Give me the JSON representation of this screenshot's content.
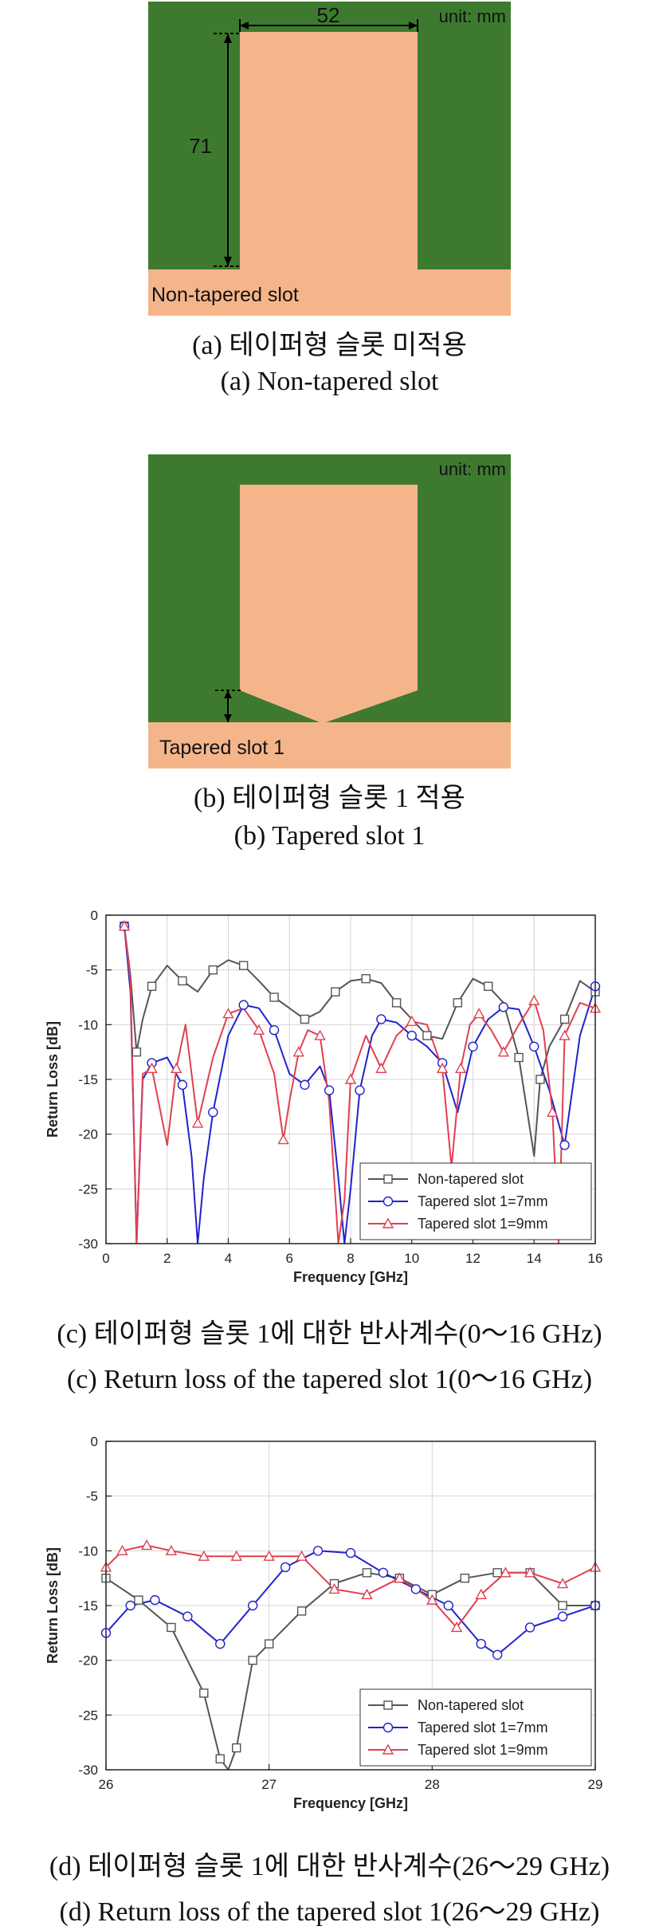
{
  "figures": {
    "a": {
      "unit": "unit: mm",
      "dim_width": "52",
      "dim_height": "71",
      "slot_label": "Non-tapered slot",
      "caption_ko": "(a) 테이퍼형 슬롯 미적용",
      "caption_en": "(a) Non-tapered slot"
    },
    "b": {
      "unit": "unit: mm",
      "slot_label": "Tapered slot 1",
      "caption_ko": "(b) 테이퍼형 슬롯 1 적용",
      "caption_en": "(b) Tapered slot 1"
    },
    "c": {
      "caption_ko": "(c) 테이퍼형 슬롯 1에 대한 반사계수(0～16 GHz)",
      "caption_en": "(c) Return loss of the tapered slot 1(0～16 GHz)"
    },
    "d": {
      "caption_ko": "(d) 테이퍼형 슬롯 1에 대한 반사계수(26～29 GHz)",
      "caption_en": "(d) Return loss of the tapered slot 1(26～29 GHz)"
    }
  },
  "colors": {
    "ground": "#3d7a2f",
    "patch": "#f5b58a",
    "series": [
      "#555555",
      "#2222cc",
      "#e04050"
    ]
  },
  "chart_data": [
    {
      "type": "line",
      "xlabel": "Frequency [GHz]",
      "ylabel": "Return Loss [dB]",
      "xlim": [
        0,
        16
      ],
      "ylim": [
        -30,
        0
      ],
      "xticks": [
        0,
        2,
        4,
        6,
        8,
        10,
        12,
        14,
        16
      ],
      "yticks": [
        0,
        -5,
        -10,
        -15,
        -20,
        -25,
        -30
      ],
      "grid": true,
      "legend": "bottom-right",
      "series": [
        {
          "name": "Non-tapered slot",
          "marker": "square",
          "x": [
            0.6,
            0.8,
            1.0,
            1.2,
            1.5,
            2.0,
            2.5,
            3.0,
            3.5,
            4.0,
            4.5,
            5.0,
            5.5,
            6.0,
            6.5,
            7.0,
            7.5,
            8.0,
            8.5,
            9.0,
            9.5,
            10.0,
            10.5,
            11.0,
            11.5,
            12.0,
            12.5,
            13.0,
            13.5,
            14.0,
            14.2,
            14.5,
            15.0,
            15.5,
            16.0
          ],
          "y": [
            -1.0,
            -5.5,
            -12.5,
            -9.5,
            -6.5,
            -4.6,
            -6.0,
            -7.0,
            -5.0,
            -4.1,
            -4.6,
            -6.0,
            -7.5,
            -8.5,
            -9.5,
            -8.8,
            -7.0,
            -6.0,
            -5.8,
            -6.2,
            -8.0,
            -9.5,
            -11.0,
            -11.3,
            -8.0,
            -5.8,
            -6.5,
            -8.0,
            -13.0,
            -22.0,
            -15.0,
            -12.0,
            -9.5,
            -6.0,
            -7.0
          ]
        },
        {
          "name": "Tapered slot 1=7mm",
          "marker": "circle",
          "x": [
            0.6,
            0.8,
            1.0,
            1.2,
            1.5,
            2.0,
            2.5,
            2.8,
            3.0,
            3.2,
            3.5,
            4.0,
            4.5,
            5.0,
            5.5,
            6.0,
            6.5,
            7.0,
            7.3,
            7.6,
            7.8,
            8.0,
            8.3,
            8.7,
            9.0,
            9.5,
            10.0,
            10.5,
            11.0,
            11.5,
            12.0,
            12.5,
            13.0,
            13.5,
            14.0,
            14.5,
            15.0,
            15.5,
            16.0
          ],
          "y": [
            -1.0,
            -7.0,
            -30.0,
            -15.0,
            -13.5,
            -13.0,
            -15.5,
            -22.0,
            -30.0,
            -24.0,
            -18.0,
            -11.0,
            -8.2,
            -8.5,
            -10.5,
            -14.5,
            -15.5,
            -13.8,
            -16.0,
            -24.0,
            -30.0,
            -25.0,
            -16.0,
            -11.0,
            -9.5,
            -9.8,
            -11.0,
            -12.0,
            -13.5,
            -18.0,
            -12.0,
            -9.5,
            -8.4,
            -8.6,
            -12.0,
            -16.0,
            -21.0,
            -11.0,
            -6.5
          ]
        },
        {
          "name": "Tapered slot 1=9mm",
          "marker": "triangle",
          "x": [
            0.6,
            0.8,
            1.0,
            1.2,
            1.5,
            2.0,
            2.3,
            2.6,
            3.0,
            3.5,
            4.0,
            4.5,
            5.0,
            5.5,
            5.8,
            6.0,
            6.3,
            6.6,
            7.0,
            7.3,
            7.6,
            7.8,
            8.0,
            8.5,
            9.0,
            9.5,
            10.0,
            10.5,
            11.0,
            11.3,
            11.6,
            11.9,
            12.2,
            12.6,
            13.0,
            13.5,
            14.0,
            14.3,
            14.6,
            14.8,
            15.0,
            15.5,
            16.0
          ],
          "y": [
            -1.0,
            -6.0,
            -30.0,
            -14.5,
            -14.0,
            -21.0,
            -14.0,
            -10.0,
            -19.0,
            -13.0,
            -9.0,
            -8.5,
            -10.5,
            -14.5,
            -20.5,
            -17.0,
            -12.5,
            -10.5,
            -11.0,
            -17.0,
            -30.0,
            -26.0,
            -15.0,
            -11.0,
            -14.0,
            -11.0,
            -9.7,
            -10.0,
            -14.0,
            -23.0,
            -14.0,
            -10.0,
            -9.0,
            -10.5,
            -12.5,
            -10.0,
            -7.8,
            -10.5,
            -18.0,
            -30.0,
            -11.0,
            -8.0,
            -8.5
          ]
        }
      ]
    },
    {
      "type": "line",
      "xlabel": "Frequency [GHz]",
      "ylabel": "Return Loss [dB]",
      "xlim": [
        26,
        29
      ],
      "ylim": [
        -30,
        0
      ],
      "xticks": [
        26,
        27,
        28,
        29
      ],
      "yticks": [
        0,
        -5,
        -10,
        -15,
        -20,
        -25,
        -30
      ],
      "grid": true,
      "legend": "bottom-right",
      "series": [
        {
          "name": "Non-tapered slot",
          "marker": "square",
          "x": [
            26.0,
            26.2,
            26.4,
            26.6,
            26.7,
            26.75,
            26.8,
            26.9,
            27.0,
            27.2,
            27.4,
            27.6,
            27.8,
            28.0,
            28.2,
            28.4,
            28.6,
            28.8,
            29.0
          ],
          "y": [
            -12.5,
            -14.5,
            -17.0,
            -23.0,
            -29.0,
            -30.0,
            -28.0,
            -20.0,
            -18.5,
            -15.5,
            -13.0,
            -12.0,
            -12.5,
            -14.0,
            -12.5,
            -12.0,
            -12.0,
            -15.0,
            -15.0
          ]
        },
        {
          "name": "Tapered slot 1=7mm",
          "marker": "circle",
          "x": [
            26.0,
            26.15,
            26.3,
            26.5,
            26.7,
            26.9,
            27.1,
            27.3,
            27.5,
            27.7,
            27.9,
            28.1,
            28.3,
            28.4,
            28.6,
            28.8,
            29.0
          ],
          "y": [
            -17.5,
            -15.0,
            -14.5,
            -16.0,
            -18.5,
            -15.0,
            -11.5,
            -10.0,
            -10.2,
            -12.0,
            -13.5,
            -15.0,
            -18.5,
            -19.5,
            -17.0,
            -16.0,
            -15.0
          ]
        },
        {
          "name": "Tapered slot 1=9mm",
          "marker": "triangle",
          "x": [
            26.0,
            26.1,
            26.25,
            26.4,
            26.6,
            26.8,
            27.0,
            27.2,
            27.4,
            27.6,
            27.8,
            28.0,
            28.15,
            28.3,
            28.45,
            28.6,
            28.8,
            29.0
          ],
          "y": [
            -11.5,
            -10.0,
            -9.5,
            -10.0,
            -10.5,
            -10.5,
            -10.5,
            -10.5,
            -13.5,
            -14.0,
            -12.5,
            -14.5,
            -17.0,
            -14.0,
            -12.0,
            -12.0,
            -13.0,
            -11.5
          ]
        }
      ]
    }
  ]
}
